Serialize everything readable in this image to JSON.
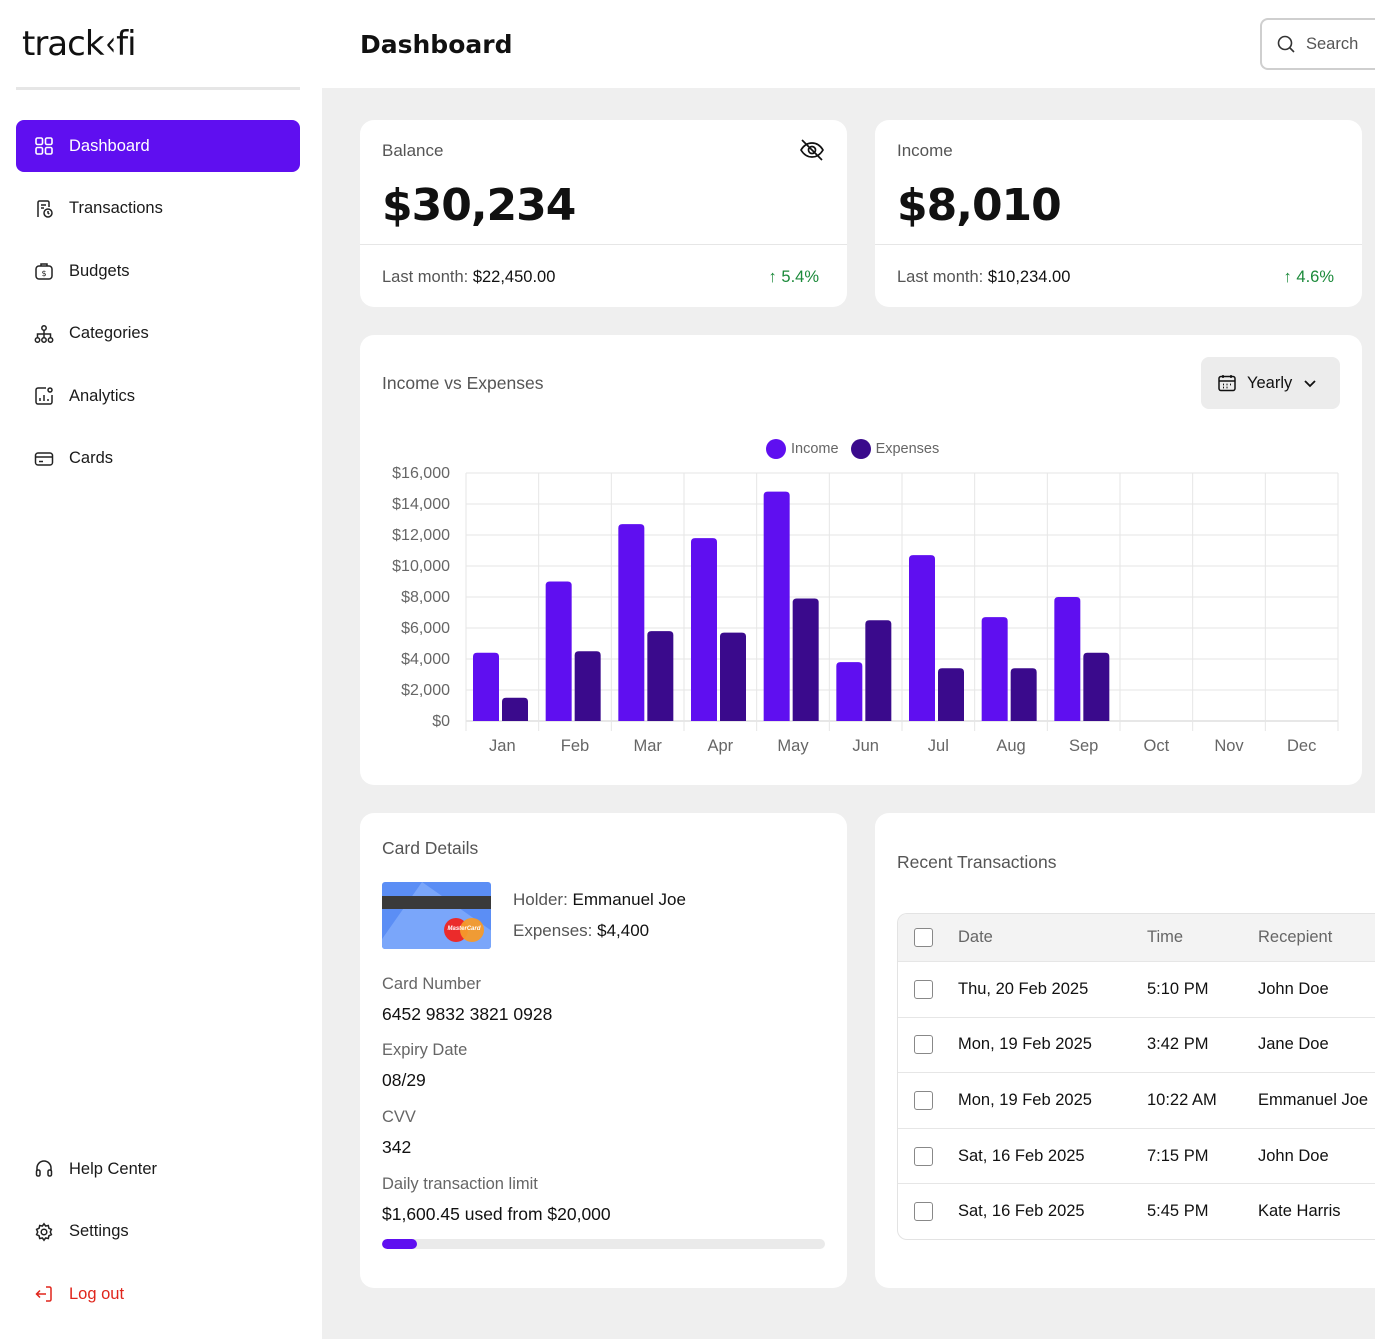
{
  "app": {
    "logo": "track fi"
  },
  "sidebar": {
    "items": [
      {
        "label": "Dashboard",
        "icon": "grid-icon",
        "active": true
      },
      {
        "label": "Transactions",
        "icon": "receipt-clock-icon"
      },
      {
        "label": "Budgets",
        "icon": "money-bag-icon"
      },
      {
        "label": "Categories",
        "icon": "hierarchy-icon"
      },
      {
        "label": "Analytics",
        "icon": "analytics-icon"
      },
      {
        "label": "Cards",
        "icon": "credit-card-icon"
      }
    ],
    "bottom_items": [
      {
        "label": "Help Center",
        "icon": "headset-icon"
      },
      {
        "label": "Settings",
        "icon": "gear-icon"
      },
      {
        "label": "Log out",
        "icon": "logout-icon"
      }
    ]
  },
  "header": {
    "title": "Dashboard",
    "search_placeholder": "Search"
  },
  "balance": {
    "label": "Balance",
    "value": "$30,234",
    "last_month_label": "Last month:",
    "last_month_value": "$22,450.00",
    "change": "5.4%"
  },
  "income": {
    "label": "Income",
    "value": "$8,010",
    "last_month_label": "Last month:",
    "last_month_value": "$10,234.00",
    "change": "4.6%"
  },
  "chart": {
    "title": "Income vs Expenses",
    "period": "Yearly"
  },
  "chart_data": {
    "type": "bar",
    "categories": [
      "Jan",
      "Feb",
      "Mar",
      "Apr",
      "May",
      "Jun",
      "Jul",
      "Aug",
      "Sep",
      "Oct",
      "Nov",
      "Dec"
    ],
    "series": [
      {
        "name": "Income",
        "color": "#5f0ff0",
        "values": [
          4400,
          9000,
          12700,
          11800,
          14800,
          3800,
          10700,
          6700,
          8000,
          0,
          0,
          0
        ]
      },
      {
        "name": "Expenses",
        "color": "#3a0a8c",
        "values": [
          1500,
          4500,
          5800,
          5700,
          7900,
          6500,
          3400,
          3400,
          4400,
          0,
          0,
          0
        ]
      }
    ],
    "ylim": [
      0,
      16000
    ],
    "yticks": [
      "$0",
      "$2,000",
      "$4,000",
      "$6,000",
      "$8,000",
      "$10,000",
      "$12,000",
      "$14,000",
      "$16,000"
    ],
    "grid": true,
    "legend": "top-center",
    "title": "",
    "xlabel": "",
    "ylabel": ""
  },
  "card_details": {
    "title": "Card Details",
    "brand": "MasterCard",
    "holder_label": "Holder:",
    "holder": "Emmanuel Joe",
    "expenses_label": "Expenses:",
    "expenses": "$4,400",
    "number_label": "Card Number",
    "number": "6452 9832 3821 0928",
    "expiry_label": "Expiry Date",
    "expiry": "08/29",
    "cvv_label": "CVV",
    "cvv": "342",
    "limit_label": "Daily transaction limit",
    "limit_text": "$1,600.45 used from $20,000",
    "limit_fraction": 0.08
  },
  "transactions": {
    "title": "Recent Transactions",
    "columns": [
      "Date",
      "Time",
      "Recepient"
    ],
    "rows": [
      {
        "date": "Thu, 20 Feb 2025",
        "time": "5:10 PM",
        "recipient": "John Doe"
      },
      {
        "date": "Mon, 19 Feb 2025",
        "time": "3:42 PM",
        "recipient": "Jane Doe"
      },
      {
        "date": "Mon, 19 Feb 2025",
        "time": "10:22 AM",
        "recipient": "Emmanuel Joe"
      },
      {
        "date": "Sat, 16 Feb 2025",
        "time": "7:15 PM",
        "recipient": "John Doe"
      },
      {
        "date": "Sat, 16 Feb 2025",
        "time": "5:45 PM",
        "recipient": "Kate Harris"
      }
    ]
  }
}
